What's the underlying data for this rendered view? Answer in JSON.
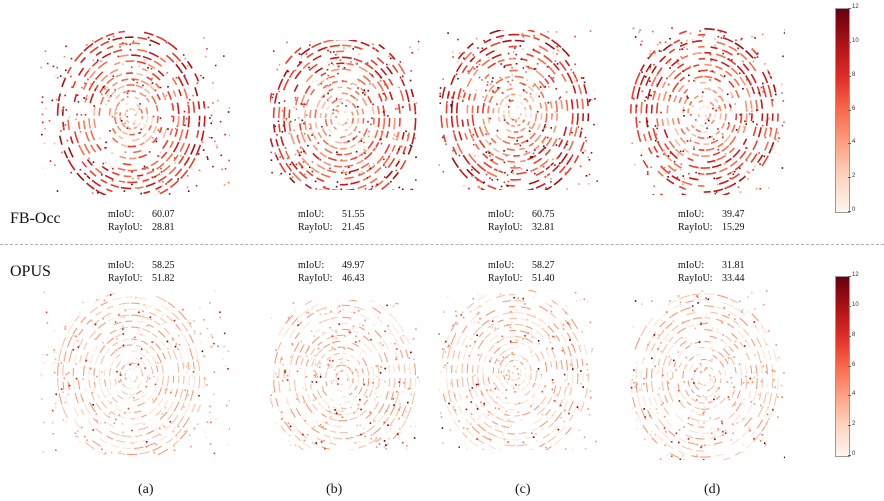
{
  "rows": [
    {
      "method": "FB-Occ",
      "metrics": [
        {
          "miou": "60.07",
          "rayiou": "28.81"
        },
        {
          "miou": "51.55",
          "rayiou": "21.45"
        },
        {
          "miou": "60.75",
          "rayiou": "32.81"
        },
        {
          "miou": "39.47",
          "rayiou": "15.29"
        }
      ]
    },
    {
      "method": "OPUS",
      "metrics": [
        {
          "miou": "58.25",
          "rayiou": "51.82"
        },
        {
          "miou": "49.97",
          "rayiou": "46.43"
        },
        {
          "miou": "58.27",
          "rayiou": "51.40"
        },
        {
          "miou": "31.81",
          "rayiou": "33.44"
        }
      ]
    }
  ],
  "metric_labels": {
    "miou": "mIoU:",
    "rayiou": "RayIoU:"
  },
  "captions": [
    "(a)",
    "(b)",
    "(c)",
    "(d)"
  ],
  "colorbar": {
    "ticks": [
      "12",
      "10",
      "8",
      "6",
      "4",
      "2",
      "0"
    ],
    "colormap": "Reds",
    "top_color": "#67000d",
    "bottom_color": "#fff5f0"
  }
}
